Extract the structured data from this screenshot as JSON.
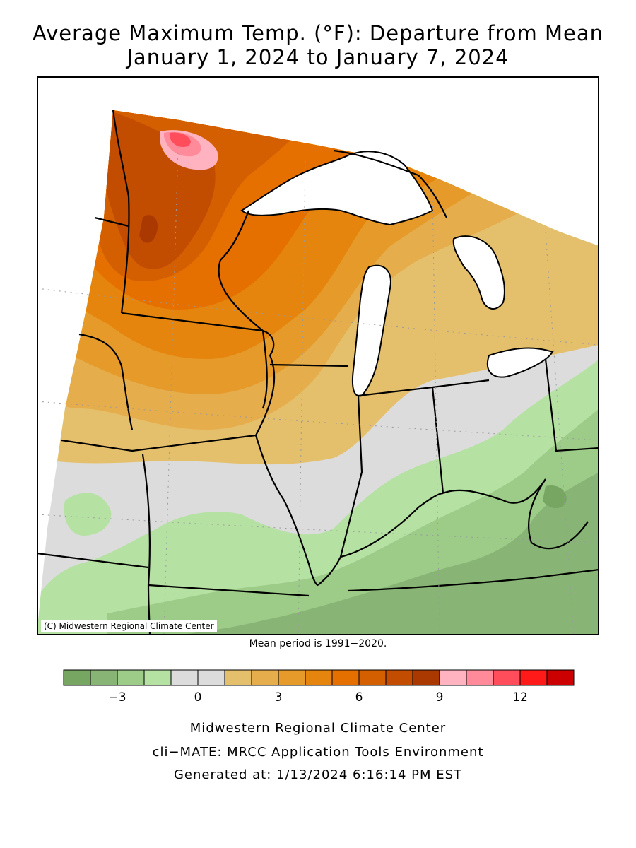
{
  "title": {
    "line1": "Average Maximum Temp. (°F): Departure from Mean",
    "line2": "January 1, 2024 to January 7, 2024"
  },
  "map": {
    "copyright": "(C) Midwestern Regional Climate Center",
    "mean_period": "Mean period is 1991−2020."
  },
  "legend": {
    "colors": [
      "#77a663",
      "#88b576",
      "#9ccc88",
      "#b5e1a3",
      "#dcdcdc",
      "#dcdcdc",
      "#e5c06c",
      "#e5ad4b",
      "#e59a2a",
      "#e5850d",
      "#e57000",
      "#d35f00",
      "#c24c00",
      "#a93900",
      "#ffb3c0",
      "#ff8a99",
      "#ff4d5c",
      "#ff1a1a",
      "#cc0000"
    ],
    "tick_labels": [
      "−3",
      "0",
      "3",
      "6",
      "9",
      "12"
    ],
    "tick_after_box": [
      2,
      5,
      8,
      11,
      14,
      17
    ]
  },
  "footer": {
    "line1": "Midwestern Regional Climate Center",
    "line2": "cli−MATE: MRCC Application Tools Environment",
    "line3": "Generated at: 1/13/2024 6:16:14 PM EST"
  }
}
